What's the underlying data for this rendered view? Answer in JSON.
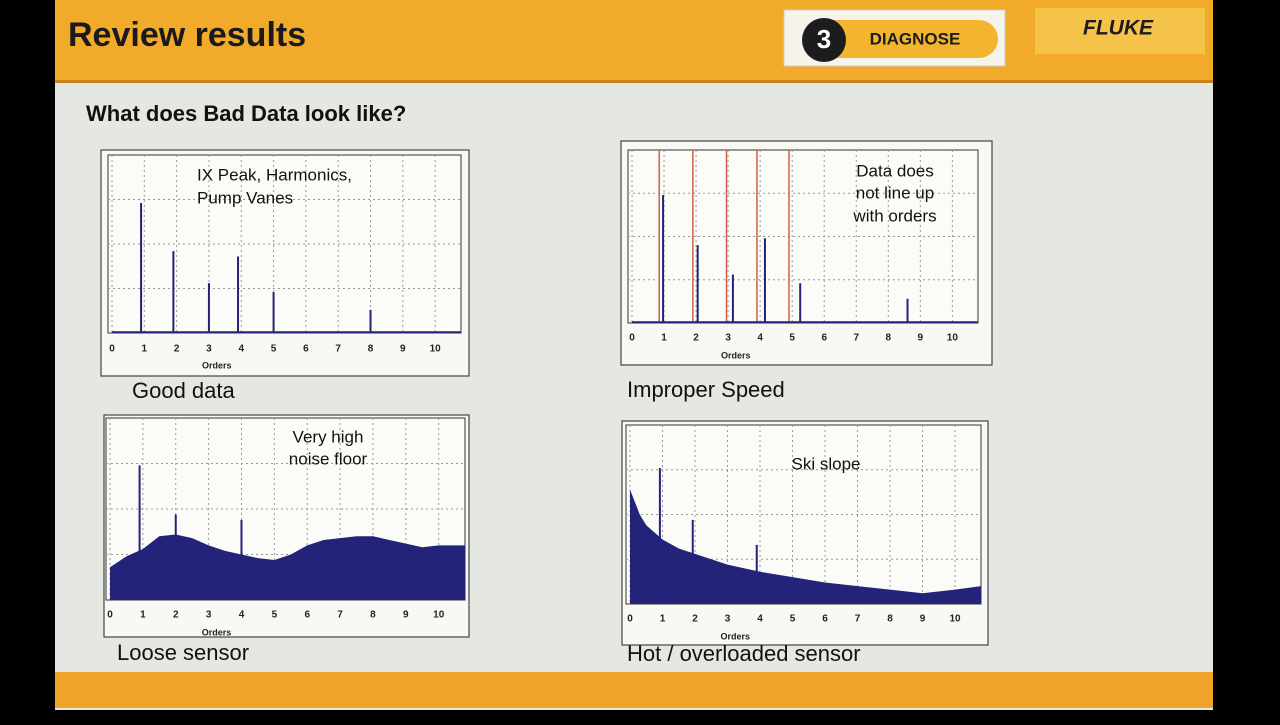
{
  "header": {
    "title": "Review results",
    "step_number": "3",
    "step_label": "DIAGNOSE",
    "brand": "FLUKE"
  },
  "subtitle": "What does Bad Data look like?",
  "chart_data": [
    {
      "type": "spectrum",
      "caption": "Good data",
      "annotation": [
        "IX Peak, Harmonics,",
        "Pump Vanes"
      ],
      "xlabel": "Orders",
      "xlim": [
        0,
        10.8
      ],
      "xticks": [
        0,
        1,
        2,
        3,
        4,
        5,
        6,
        7,
        8,
        9,
        10
      ],
      "ylim": [
        0,
        1
      ],
      "grid": true,
      "color": "#23237a",
      "peaks": {
        "x": [
          0.9,
          1.9,
          3,
          3.9,
          5,
          8
        ],
        "values": [
          0.73,
          0.46,
          0.28,
          0.43,
          0.23,
          0.13
        ]
      },
      "floor": {
        "x": [
          0,
          10.8
        ],
        "values": [
          0.01,
          0.01
        ]
      }
    },
    {
      "type": "spectrum",
      "caption": "Improper Speed",
      "annotation": [
        "Data does",
        "not line up",
        "with orders"
      ],
      "xlabel": "Orders",
      "xlim": [
        0,
        10.8
      ],
      "xticks": [
        0,
        1,
        2,
        3,
        4,
        5,
        6,
        7,
        8,
        9,
        10
      ],
      "ylim": [
        0,
        1
      ],
      "grid": true,
      "color": "#23237a",
      "order_lines": {
        "x": [
          0.85,
          1.9,
          2.95,
          3.9,
          4.9
        ],
        "color": "#d0604a"
      },
      "peaks": {
        "x": [
          0.97,
          2.05,
          3.15,
          4.15,
          5.25,
          8.6
        ],
        "values": [
          0.74,
          0.45,
          0.28,
          0.49,
          0.23,
          0.14
        ]
      },
      "floor": {
        "x": [
          0,
          10.8
        ],
        "values": [
          0.01,
          0.01
        ]
      }
    },
    {
      "type": "spectrum",
      "caption": "Loose sensor",
      "annotation": [
        "Very high",
        "noise floor"
      ],
      "xlabel": "Orders",
      "xlim": [
        0,
        10.8
      ],
      "xticks": [
        0,
        1,
        2,
        3,
        4,
        5,
        6,
        7,
        8,
        9,
        10
      ],
      "ylim": [
        0,
        1
      ],
      "grid": true,
      "color": "#23237a",
      "peaks": {
        "x": [
          0.9,
          2,
          4
        ],
        "values": [
          0.74,
          0.47,
          0.44
        ]
      },
      "floor": {
        "x": [
          0,
          0.5,
          1,
          1.5,
          2,
          2.5,
          3,
          3.5,
          4,
          4.5,
          5,
          5.5,
          6,
          6.5,
          7,
          7.5,
          8,
          8.5,
          9,
          9.5,
          10,
          10.8
        ],
        "values": [
          0.18,
          0.24,
          0.28,
          0.35,
          0.36,
          0.34,
          0.3,
          0.27,
          0.25,
          0.23,
          0.22,
          0.25,
          0.3,
          0.33,
          0.34,
          0.35,
          0.35,
          0.33,
          0.31,
          0.29,
          0.3,
          0.3
        ]
      }
    },
    {
      "type": "spectrum",
      "caption": "Hot / overloaded sensor",
      "annotation": [
        "Ski slope"
      ],
      "xlabel": "Orders",
      "xlim": [
        0,
        10.8
      ],
      "xticks": [
        0,
        1,
        2,
        3,
        4,
        5,
        6,
        7,
        8,
        9,
        10
      ],
      "ylim": [
        0,
        1
      ],
      "grid": true,
      "color": "#23237a",
      "peaks": {
        "x": [
          0.92,
          1.93,
          3.9
        ],
        "values": [
          0.76,
          0.47,
          0.33
        ]
      },
      "floor": {
        "x": [
          0,
          0.3,
          0.5,
          1,
          1.5,
          2,
          3,
          4,
          5,
          6,
          7,
          8,
          9,
          10,
          10.8
        ],
        "values": [
          0.64,
          0.5,
          0.44,
          0.36,
          0.31,
          0.28,
          0.22,
          0.18,
          0.15,
          0.12,
          0.1,
          0.08,
          0.06,
          0.08,
          0.1
        ]
      }
    }
  ]
}
